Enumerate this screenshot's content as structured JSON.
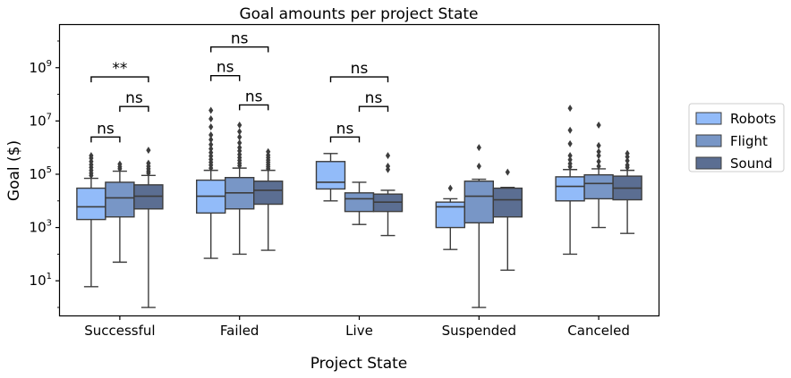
{
  "chart_data": {
    "type": "box",
    "title": "Goal amounts per project State",
    "xlabel": "Project State",
    "ylabel": "Goal ($)",
    "yscale": "log",
    "ylim": [
      0.5,
      40000000000
    ],
    "yticks": [
      {
        "value": 10,
        "base": "10",
        "exp": "1"
      },
      {
        "value": 1000,
        "base": "10",
        "exp": "3"
      },
      {
        "value": 100000,
        "base": "10",
        "exp": "5"
      },
      {
        "value": 10000000,
        "base": "10",
        "exp": "7"
      },
      {
        "value": 1000000000,
        "base": "10",
        "exp": "9"
      }
    ],
    "categories": [
      "Successful",
      "Failed",
      "Live",
      "Suspended",
      "Canceled"
    ],
    "legend": {
      "position": "right",
      "entries": [
        "Robots",
        "Flight",
        "Sound"
      ]
    },
    "colors": {
      "Robots": "#92bbf9",
      "Flight": "#7896c6",
      "Sound": "#5b6e92",
      "edge": "#3d3d3d"
    },
    "series": [
      {
        "name": "Robots",
        "boxes": [
          {
            "category": "Successful",
            "whisker_low": 6,
            "q1": 2000,
            "median": 6000,
            "q3": 30000,
            "whisker_high": 70000,
            "outliers": [
              90000,
              110000,
              140000,
              180000,
              230000,
              300000,
              400000,
              500000
            ]
          },
          {
            "category": "Failed",
            "whisker_low": 70,
            "q1": 3500,
            "median": 15000,
            "q3": 60000,
            "whisker_high": 140000,
            "outliers": [
              170000,
              220000,
              280000,
              360000,
              480000,
              650000,
              900000,
              1300000,
              2000000,
              3000000,
              6000000,
              12000000,
              25000000
            ]
          },
          {
            "category": "Live",
            "whisker_low": 10000,
            "q1": 28000,
            "median": 50000,
            "q3": 300000,
            "whisker_high": 600000,
            "outliers": []
          },
          {
            "category": "Suspended",
            "whisker_low": 150,
            "q1": 1000,
            "median": 6000,
            "q3": 9000,
            "whisker_high": 12000,
            "outliers": [
              30000
            ]
          },
          {
            "category": "Canceled",
            "whisker_low": 100,
            "q1": 10000,
            "median": 35000,
            "q3": 80000,
            "whisker_high": 150000,
            "outliers": [
              190000,
              250000,
              350000,
              500000,
              1400000,
              4500000,
              30000000
            ]
          }
        ]
      },
      {
        "name": "Flight",
        "boxes": [
          {
            "category": "Successful",
            "whisker_low": 50,
            "q1": 2500,
            "median": 13000,
            "q3": 50000,
            "whisker_high": 130000,
            "outliers": [
              160000,
              190000,
              240000
            ]
          },
          {
            "category": "Failed",
            "whisker_low": 100,
            "q1": 5000,
            "median": 20000,
            "q3": 75000,
            "whisker_high": 170000,
            "outliers": [
              210000,
              260000,
              330000,
              420000,
              550000,
              750000,
              1000000,
              1500000,
              2500000,
              4000000,
              7000000
            ]
          },
          {
            "category": "Live",
            "whisker_low": 1300,
            "q1": 4000,
            "median": 12000,
            "q3": 20000,
            "whisker_high": 50000,
            "outliers": []
          },
          {
            "category": "Suspended",
            "whisker_low": 1,
            "q1": 1500,
            "median": 15000,
            "q3": 55000,
            "whisker_high": 65000,
            "outliers": [
              200000,
              1000000
            ]
          },
          {
            "category": "Canceled",
            "whisker_low": 1000,
            "q1": 12000,
            "median": 45000,
            "q3": 95000,
            "whisker_high": 160000,
            "outliers": [
              200000,
              300000,
              500000,
              700000,
              1200000,
              7000000
            ]
          }
        ]
      },
      {
        "name": "Sound",
        "boxes": [
          {
            "category": "Successful",
            "whisker_low": 1,
            "q1": 5000,
            "median": 15000,
            "q3": 40000,
            "whisker_high": 90000,
            "outliers": [
              110000,
              130000,
              160000,
              200000,
              260000,
              800000
            ]
          },
          {
            "category": "Failed",
            "whisker_low": 140,
            "q1": 7500,
            "median": 25000,
            "q3": 55000,
            "whisker_high": 140000,
            "outliers": [
              160000,
              190000,
              230000,
              280000,
              340000,
              420000,
              520000,
              700000
            ]
          },
          {
            "category": "Live",
            "whisker_low": 500,
            "q1": 4000,
            "median": 9000,
            "q3": 18000,
            "whisker_high": 25000,
            "outliers": [
              150000,
              200000,
              500000
            ]
          },
          {
            "category": "Suspended",
            "whisker_low": 25,
            "q1": 2500,
            "median": 11000,
            "q3": 30000,
            "whisker_high": 32000,
            "outliers": [
              120000
            ]
          },
          {
            "category": "Canceled",
            "whisker_low": 600,
            "q1": 11000,
            "median": 30000,
            "q3": 85000,
            "whisker_high": 140000,
            "outliers": [
              180000,
              220000,
              320000,
              450000,
              600000
            ]
          }
        ]
      }
    ],
    "annotations": [
      {
        "category": "Successful",
        "from": "Robots",
        "to": "Flight",
        "y": 2500000,
        "text": "ns"
      },
      {
        "category": "Successful",
        "from": "Flight",
        "to": "Sound",
        "y": 35000000,
        "text": "ns"
      },
      {
        "category": "Successful",
        "from": "Robots",
        "to": "Sound",
        "y": 450000000,
        "text": "**"
      },
      {
        "category": "Failed",
        "from": "Flight",
        "to": "Sound",
        "y": 40000000,
        "text": "ns"
      },
      {
        "category": "Failed",
        "from": "Robots",
        "to": "Flight",
        "y": 500000000,
        "text": "ns"
      },
      {
        "category": "Failed",
        "from": "Robots",
        "to": "Sound",
        "y": 6000000000,
        "text": "ns"
      },
      {
        "category": "Live",
        "from": "Robots",
        "to": "Flight",
        "y": 2500000,
        "text": "ns"
      },
      {
        "category": "Live",
        "from": "Flight",
        "to": "Sound",
        "y": 35000000,
        "text": "ns"
      },
      {
        "category": "Live",
        "from": "Robots",
        "to": "Sound",
        "y": 450000000,
        "text": "ns"
      }
    ]
  }
}
